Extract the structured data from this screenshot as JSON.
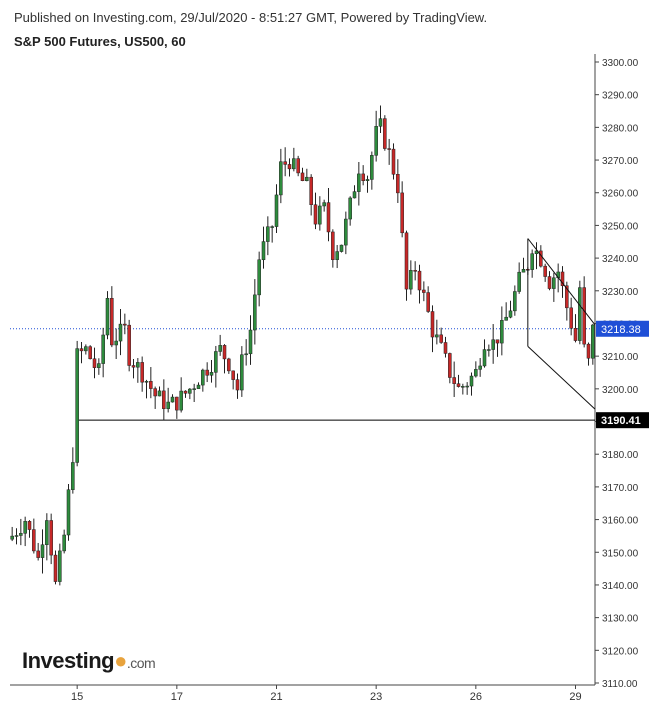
{
  "header": {
    "published": "Published on Investing.com, 29/Jul/2020 - 8:51:27 GMT, Powered by TradingView.",
    "title": "S&P 500 Futures, US500, 60"
  },
  "logo": {
    "name": "Investing",
    "suffix": ".com"
  },
  "colors": {
    "up": "#2e8b3d",
    "down": "#c62828",
    "current_line": "#1f4fd6",
    "current_box": "#1f4fd6",
    "support_line": "#000000"
  },
  "chart_data": {
    "type": "candlestick",
    "instrument": "S&P 500 Futures, US500, 60",
    "ylim": [
      3110,
      3300
    ],
    "ytick_labels": [
      "3110.00",
      "3120.00",
      "3130.00",
      "3140.00",
      "3150.00",
      "3160.00",
      "3170.00",
      "3180.00",
      "3190.00",
      "3200.00",
      "3210.00",
      "3220.00",
      "3230.00",
      "3240.00",
      "3250.00",
      "3260.00",
      "3270.00",
      "3280.00",
      "3290.00",
      "3300.00"
    ],
    "ytick_values": [
      3110,
      3120,
      3130,
      3140,
      3150,
      3160,
      3170,
      3180,
      3190,
      3200,
      3210,
      3220,
      3230,
      3240,
      3250,
      3260,
      3270,
      3280,
      3290,
      3300
    ],
    "xtick_labels": [
      "15",
      "17",
      "21",
      "23",
      "26",
      "29"
    ],
    "xtick_index": [
      15,
      38,
      61,
      84,
      107,
      130
    ],
    "n_candles": 135,
    "close_path": [
      [
        0,
        3155
      ],
      [
        3,
        3160
      ],
      [
        6,
        3148
      ],
      [
        8,
        3162
      ],
      [
        10,
        3140
      ],
      [
        12,
        3155
      ],
      [
        14,
        3180
      ],
      [
        15,
        3210
      ],
      [
        17,
        3212
      ],
      [
        19,
        3207
      ],
      [
        20,
        3205
      ],
      [
        22,
        3228
      ],
      [
        23,
        3215
      ],
      [
        26,
        3218
      ],
      [
        27,
        3210
      ],
      [
        30,
        3205
      ],
      [
        33,
        3198
      ],
      [
        36,
        3195
      ],
      [
        38,
        3196
      ],
      [
        41,
        3200
      ],
      [
        44,
        3205
      ],
      [
        46,
        3208
      ],
      [
        48,
        3212
      ],
      [
        50,
        3208
      ],
      [
        52,
        3200
      ],
      [
        53,
        3208
      ],
      [
        55,
        3218
      ],
      [
        57,
        3240
      ],
      [
        60,
        3250
      ],
      [
        62,
        3268
      ],
      [
        64,
        3270
      ],
      [
        66,
        3265
      ],
      [
        68,
        3262
      ],
      [
        70,
        3252
      ],
      [
        72,
        3255
      ],
      [
        74,
        3242
      ],
      [
        76,
        3245
      ],
      [
        78,
        3256
      ],
      [
        80,
        3268
      ],
      [
        82,
        3265
      ],
      [
        84,
        3278
      ],
      [
        85,
        3280
      ],
      [
        87,
        3272
      ],
      [
        89,
        3262
      ],
      [
        91,
        3230
      ],
      [
        93,
        3237
      ],
      [
        95,
        3228
      ],
      [
        97,
        3218
      ],
      [
        99,
        3212
      ],
      [
        101,
        3205
      ],
      [
        103,
        3200
      ],
      [
        105,
        3202
      ],
      [
        107,
        3205
      ],
      [
        109,
        3215
      ],
      [
        111,
        3214
      ],
      [
        113,
        3218
      ],
      [
        115,
        3225
      ],
      [
        117,
        3233
      ],
      [
        119,
        3238
      ],
      [
        120,
        3244
      ],
      [
        122,
        3240
      ],
      [
        124,
        3233
      ],
      [
        126,
        3236
      ],
      [
        128,
        3225
      ],
      [
        130,
        3215
      ],
      [
        131,
        3231
      ],
      [
        132,
        3212
      ],
      [
        133,
        3208
      ],
      [
        134,
        3218
      ]
    ],
    "current_price": 3218.38,
    "current_price_label": "3218.38",
    "support_level": 3190.41,
    "support_label": "3190.41",
    "support_from_index": 15,
    "channel_upper": [
      [
        119,
        3246
      ],
      [
        134,
        3224
      ]
    ],
    "channel_lower": [
      [
        119,
        3213
      ],
      [
        134,
        3197
      ]
    ]
  }
}
